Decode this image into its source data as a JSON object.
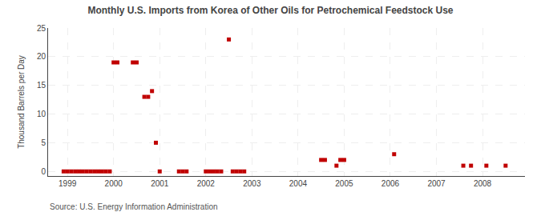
{
  "chart_data": {
    "type": "scatter",
    "title": "Monthly U.S. Imports from Korea of Other Oils for Petrochemical Feedstock Use",
    "y_label": "Thousand Barrels per Day",
    "annotations": [
      "Source: U.S. Energy Information Administration"
    ],
    "x": [
      1998.917,
      1999.0,
      1999.083,
      1999.167,
      1999.25,
      1999.333,
      1999.417,
      1999.5,
      1999.583,
      1999.667,
      1999.75,
      1999.833,
      1999.917,
      2000.0,
      2000.083,
      2000.417,
      2000.5,
      2000.667,
      2000.75,
      2000.833,
      2000.917,
      2001.0,
      2001.417,
      2001.5,
      2001.583,
      2002.0,
      2002.083,
      2002.167,
      2002.25,
      2002.333,
      2002.5,
      2002.583,
      2002.667,
      2002.75,
      2002.833,
      2004.5,
      2004.583,
      2004.833,
      2004.917,
      2005.0,
      2006.083,
      2007.583,
      2007.75,
      2008.083,
      2008.5
    ],
    "values": [
      0,
      0,
      0,
      0,
      0,
      0,
      0,
      0,
      0,
      0,
      0,
      0,
      0,
      19,
      19,
      19,
      19,
      13,
      13,
      14,
      5,
      0,
      0,
      0,
      0,
      0,
      0,
      0,
      0,
      0,
      23,
      0,
      0,
      0,
      0,
      2,
      2,
      1,
      2,
      2,
      3,
      1,
      1,
      1,
      1
    ],
    "color": "#C00000",
    "marker": "square",
    "xlim": [
      1998.58,
      2008.92
    ],
    "ylim": [
      -0.8,
      25
    ],
    "xticks": [
      1999,
      2000,
      2001,
      2002,
      2003,
      2004,
      2005,
      2006,
      2007,
      2008
    ],
    "yticks": [
      0,
      5,
      10,
      15,
      20,
      25
    ],
    "grid": true
  }
}
